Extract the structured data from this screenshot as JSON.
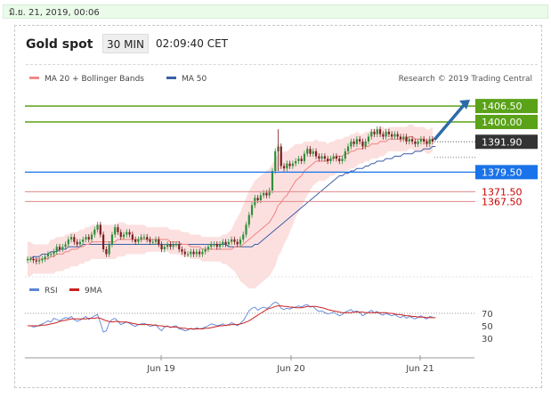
{
  "status_date": "มิ.ย. 21, 2019, 00:06",
  "header": {
    "instrument": "Gold spot",
    "timeframe": "30 MIN",
    "time": "02:09:40 CET"
  },
  "legend": [
    {
      "label": "MA 20 + Bollinger Bands",
      "color": "#f08a8a"
    },
    {
      "label": "MA 50",
      "color": "#3a5fa8"
    }
  ],
  "credit": "Research © 2019 Trading Central",
  "colors": {
    "bull": "#2f8f3a",
    "bear": "#7a1f1f",
    "ma20": "#f08080",
    "ma50": "#3a5fa8",
    "band_fill": "#fbdada",
    "target": "#5aa218",
    "pivot": "#1a73e8",
    "support": "#e08a8a",
    "support_text": "#cc0000",
    "current": "#333333",
    "arrow": "#2d6aa8",
    "rsi": "#5b85d6",
    "rsi_ma": "#cc2222"
  },
  "chart_data": [
    {
      "type": "candlestick",
      "x_labels": [
        "Jun 19",
        "Jun 20",
        "Jun 21"
      ],
      "ylim": [
        1340,
        1412
      ],
      "levels": [
        {
          "value": 1406.5,
          "label": "1406.50",
          "style": "target"
        },
        {
          "value": 1400.0,
          "label": "1400.00",
          "style": "target"
        },
        {
          "value": 1391.9,
          "label": "1391.90",
          "style": "current"
        },
        {
          "value": 1379.5,
          "label": "1379.50",
          "style": "pivot"
        },
        {
          "value": 1371.5,
          "label": "1371.50",
          "style": "support"
        },
        {
          "value": 1367.5,
          "label": "1367.50",
          "style": "support"
        }
      ],
      "close": [
        1344,
        1344,
        1343.5,
        1343,
        1343.5,
        1344,
        1345,
        1346,
        1346,
        1347,
        1349,
        1348,
        1349,
        1350,
        1352,
        1353,
        1351,
        1350,
        1351,
        1352,
        1353,
        1352,
        1354,
        1356,
        1358,
        1354,
        1348,
        1346,
        1350,
        1354,
        1357,
        1355,
        1353,
        1354,
        1355,
        1354,
        1352,
        1351,
        1352,
        1353,
        1353,
        1352,
        1351,
        1351,
        1352,
        1350,
        1348,
        1349,
        1350,
        1349,
        1350,
        1350,
        1348,
        1347,
        1346,
        1346,
        1347,
        1346,
        1347,
        1346,
        1347,
        1348,
        1349,
        1350,
        1350,
        1349,
        1350,
        1351,
        1350,
        1351,
        1352,
        1351,
        1350,
        1352,
        1354,
        1358,
        1362,
        1366,
        1369,
        1368,
        1370,
        1371,
        1370,
        1372,
        1380,
        1388,
        1390,
        1382,
        1381,
        1383,
        1382,
        1383,
        1384,
        1385,
        1384,
        1387,
        1389,
        1387,
        1388,
        1386,
        1385,
        1386,
        1385,
        1384,
        1385,
        1386,
        1385,
        1384,
        1385,
        1388,
        1390,
        1392,
        1391,
        1393,
        1392,
        1390,
        1392,
        1394,
        1396,
        1395,
        1397,
        1395,
        1394,
        1396,
        1395,
        1394,
        1395,
        1394,
        1393,
        1394,
        1392,
        1393,
        1392,
        1391,
        1392,
        1393,
        1392,
        1391,
        1393,
        1392
      ],
      "ma20": [
        1344,
        1344,
        1344,
        1344,
        1344,
        1344,
        1344,
        1344,
        1345,
        1345,
        1346,
        1346,
        1346,
        1347,
        1347,
        1348,
        1348,
        1348,
        1349,
        1349,
        1350,
        1350,
        1351,
        1351,
        1351,
        1351,
        1351,
        1351,
        1351,
        1351,
        1351,
        1352,
        1352,
        1352,
        1352,
        1352,
        1352,
        1352,
        1352,
        1352,
        1352,
        1352,
        1352,
        1352,
        1352,
        1352,
        1352,
        1352,
        1352,
        1351,
        1351,
        1351,
        1351,
        1350,
        1350,
        1350,
        1349,
        1349,
        1349,
        1349,
        1348,
        1348,
        1348,
        1348,
        1348,
        1348,
        1348,
        1348,
        1348,
        1348,
        1348,
        1349,
        1349,
        1349,
        1350,
        1351,
        1352,
        1353,
        1354,
        1355,
        1356,
        1357,
        1358,
        1359,
        1361,
        1363,
        1366,
        1367,
        1369,
        1370,
        1372,
        1374,
        1376,
        1377,
        1378,
        1380,
        1381,
        1382,
        1383,
        1384,
        1384,
        1384,
        1384,
        1384,
        1385,
        1385,
        1386,
        1386,
        1386,
        1387,
        1387,
        1388,
        1388,
        1389,
        1389,
        1389,
        1390,
        1390,
        1391,
        1391,
        1391,
        1392,
        1392,
        1392,
        1393,
        1393,
        1393,
        1393,
        1393,
        1393,
        1393,
        1394,
        1394,
        1393,
        1393,
        1393,
        1393,
        1392,
        1392,
        1393,
        1393
      ],
      "band": [
        7,
        7,
        6,
        6,
        6,
        6,
        6,
        6,
        7,
        7,
        7,
        7,
        7,
        7,
        7,
        7,
        7,
        7,
        7,
        7,
        7,
        7,
        7,
        7,
        7,
        7,
        7,
        7,
        7,
        7,
        7,
        7,
        7,
        7,
        6,
        6,
        6,
        6,
        6,
        6,
        6,
        5,
        5,
        5,
        5,
        5,
        5,
        5,
        5,
        5,
        5,
        5,
        5,
        5,
        5,
        5,
        5,
        5,
        5,
        5,
        5,
        5,
        5,
        5,
        5,
        5,
        5,
        6,
        6,
        7,
        8,
        10,
        12,
        14,
        16,
        18,
        20,
        21,
        22,
        22,
        22,
        22,
        22,
        22,
        22,
        22,
        21,
        20,
        19,
        18,
        17,
        16,
        15,
        14,
        13,
        12,
        11,
        10,
        9,
        9,
        8,
        8,
        8,
        7,
        7,
        7,
        7,
        7,
        7,
        7,
        7,
        7,
        7,
        7,
        6,
        6,
        6,
        6,
        6,
        6,
        6,
        6,
        6,
        5,
        5,
        5,
        5,
        5,
        5,
        5,
        5,
        5,
        5,
        5,
        5,
        5,
        5,
        5,
        5,
        5,
        5,
        5
      ],
      "ma50": [
        1344,
        1344,
        1345,
        1345,
        1345,
        1346,
        1346,
        1346,
        1347,
        1347,
        1347,
        1348,
        1348,
        1348,
        1349,
        1349,
        1349,
        1349,
        1349,
        1350,
        1350,
        1350,
        1350,
        1350,
        1350,
        1350,
        1350,
        1350,
        1350,
        1350,
        1350,
        1350,
        1350,
        1350,
        1350,
        1350,
        1350,
        1350,
        1350,
        1350,
        1350,
        1350,
        1350,
        1350,
        1350,
        1350,
        1350,
        1350,
        1350,
        1350,
        1350,
        1350,
        1350,
        1350,
        1350,
        1350,
        1350,
        1350,
        1350,
        1350,
        1350,
        1350,
        1350,
        1350,
        1350,
        1350,
        1350,
        1350,
        1350,
        1349,
        1349,
        1349,
        1349,
        1349,
        1349,
        1349,
        1349,
        1349,
        1350,
        1350,
        1351,
        1352,
        1353,
        1354,
        1355,
        1356,
        1357,
        1358,
        1359,
        1360,
        1361,
        1362,
        1363,
        1364,
        1365,
        1366,
        1367,
        1368,
        1369,
        1370,
        1371,
        1372,
        1373,
        1374,
        1375,
        1376,
        1377,
        1378,
        1378,
        1379,
        1379,
        1380,
        1380,
        1381,
        1381,
        1381,
        1382,
        1382,
        1383,
        1383,
        1384,
        1384,
        1384,
        1385,
        1385,
        1385,
        1386,
        1386,
        1386,
        1387,
        1387,
        1387,
        1387,
        1388,
        1388,
        1388,
        1389,
        1389,
        1389,
        1390,
        1390
      ]
    },
    {
      "type": "line",
      "title": "RSI",
      "legend": [
        "RSI",
        "9MA"
      ],
      "ylim": [
        10,
        90
      ],
      "ticks": [
        70,
        50,
        30
      ],
      "rsi": [
        50,
        50,
        48,
        49,
        51,
        53,
        55,
        58,
        56,
        62,
        60,
        58,
        61,
        63,
        62,
        65,
        60,
        57,
        59,
        62,
        65,
        60,
        63,
        66,
        68,
        55,
        40,
        42,
        55,
        60,
        62,
        57,
        52,
        54,
        56,
        54,
        51,
        49,
        52,
        53,
        54,
        52,
        49,
        50,
        52,
        46,
        42,
        48,
        50,
        47,
        49,
        50,
        45,
        44,
        42,
        43,
        46,
        44,
        47,
        45,
        46,
        48,
        50,
        53,
        52,
        50,
        51,
        53,
        50,
        52,
        55,
        53,
        50,
        54,
        58,
        66,
        74,
        78,
        80,
        75,
        78,
        80,
        78,
        80,
        85,
        88,
        86,
        78,
        76,
        78,
        77,
        79,
        80,
        82,
        80,
        83,
        84,
        80,
        81,
        76,
        73,
        74,
        71,
        69,
        70,
        72,
        69,
        66,
        68,
        72,
        74,
        76,
        72,
        74,
        71,
        66,
        69,
        72,
        75,
        71,
        73,
        69,
        67,
        70,
        68,
        66,
        68,
        65,
        63,
        66,
        62,
        65,
        63,
        61,
        64,
        66,
        63,
        61,
        65,
        64
      ],
      "rsi_ma": [
        50,
        50,
        50,
        50,
        50,
        51,
        51,
        52,
        53,
        54,
        55,
        57,
        58,
        59,
        60,
        61,
        61,
        61,
        61,
        61,
        61,
        62,
        62,
        62,
        63,
        62,
        60,
        58,
        57,
        56,
        57,
        57,
        56,
        56,
        56,
        55,
        54,
        53,
        52,
        52,
        52,
        52,
        52,
        51,
        51,
        50,
        50,
        49,
        49,
        48,
        48,
        48,
        47,
        46,
        46,
        45,
        45,
        45,
        45,
        45,
        45,
        46,
        46,
        47,
        48,
        49,
        50,
        50,
        51,
        51,
        52,
        52,
        52,
        53,
        54,
        56,
        58,
        61,
        64,
        67,
        70,
        73,
        76,
        78,
        79,
        81,
        82,
        82,
        81,
        81,
        80,
        80,
        79,
        79,
        79,
        80,
        81,
        81,
        81,
        81,
        80,
        79,
        78,
        76,
        75,
        74,
        73,
        72,
        71,
        71,
        71,
        71,
        72,
        72,
        72,
        72,
        71,
        71,
        71,
        71,
        71,
        71,
        71,
        71,
        70,
        70,
        69,
        68,
        68,
        67,
        66,
        66,
        65,
        65,
        64,
        64,
        64,
        63,
        63,
        63,
        63
      ],
      "ma": [
        50,
        50,
        50,
        50,
        50,
        51,
        51,
        52,
        53,
        54,
        55,
        57,
        58,
        59,
        60,
        61,
        61,
        61,
        61,
        61,
        61,
        62,
        62,
        62,
        63,
        62,
        60,
        58,
        57,
        56,
        57,
        57,
        56,
        56,
        56,
        55,
        54,
        53,
        52,
        52,
        52,
        52,
        52,
        51,
        51,
        50,
        50,
        49,
        49,
        48,
        48,
        48,
        47,
        46,
        46,
        45,
        45,
        45,
        45,
        45,
        45,
        46,
        46,
        47,
        48,
        49,
        50,
        50,
        51,
        51,
        52,
        52,
        52,
        53,
        54,
        56,
        58,
        61,
        64,
        67,
        70,
        73,
        76,
        78,
        79,
        81,
        82,
        82,
        81,
        81,
        80,
        80,
        79,
        79,
        79,
        80,
        81,
        81,
        81,
        81,
        80,
        79,
        78,
        76,
        75,
        74,
        73,
        72,
        71,
        71,
        71,
        71,
        72,
        72,
        72,
        72,
        71,
        71,
        71,
        71,
        71,
        71,
        71,
        71,
        70,
        70,
        69,
        68,
        68,
        67,
        66,
        66,
        65,
        65,
        64,
        64,
        64,
        63,
        63,
        63,
        63
      ]
    }
  ]
}
